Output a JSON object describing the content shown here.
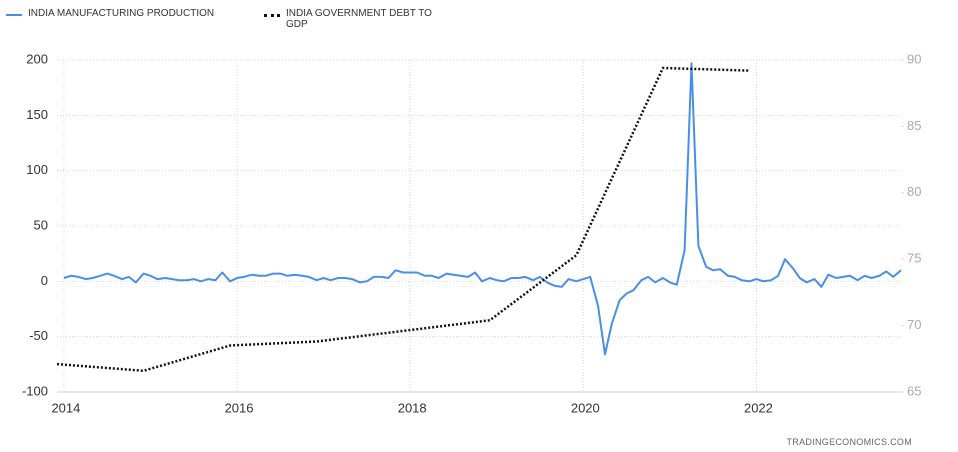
{
  "chart_data": {
    "type": "line",
    "source": "TRADINGECONOMICS.COM",
    "xlim": [
      2013.92,
      2023.67
    ],
    "xticks": [
      2014,
      2016,
      2018,
      2020,
      2022
    ],
    "ylim": [
      -100,
      200
    ],
    "yticks": [
      -100,
      -50,
      0,
      50,
      100,
      150,
      200
    ],
    "y2lim": [
      65,
      90
    ],
    "y2ticks": [
      65,
      70,
      75,
      80,
      85,
      90
    ],
    "grid": true,
    "series": [
      {
        "name": "INDIA MANUFACTURING PRODUCTION",
        "color": "#4a8fe7",
        "axis": "y",
        "x": [
          2014.0,
          2014.08,
          2014.17,
          2014.25,
          2014.33,
          2014.42,
          2014.5,
          2014.58,
          2014.67,
          2014.75,
          2014.83,
          2014.92,
          2015.0,
          2015.08,
          2015.17,
          2015.25,
          2015.33,
          2015.42,
          2015.5,
          2015.58,
          2015.67,
          2015.75,
          2015.83,
          2015.92,
          2016.0,
          2016.08,
          2016.17,
          2016.25,
          2016.33,
          2016.42,
          2016.5,
          2016.58,
          2016.67,
          2016.75,
          2016.83,
          2016.92,
          2017.0,
          2017.08,
          2017.17,
          2017.25,
          2017.33,
          2017.42,
          2017.5,
          2017.58,
          2017.67,
          2017.75,
          2017.83,
          2017.92,
          2018.0,
          2018.08,
          2018.17,
          2018.25,
          2018.33,
          2018.42,
          2018.5,
          2018.58,
          2018.67,
          2018.75,
          2018.83,
          2018.92,
          2019.0,
          2019.08,
          2019.17,
          2019.25,
          2019.33,
          2019.42,
          2019.5,
          2019.58,
          2019.67,
          2019.75,
          2019.83,
          2019.92,
          2020.0,
          2020.08,
          2020.17,
          2020.25,
          2020.33,
          2020.42,
          2020.5,
          2020.58,
          2020.67,
          2020.75,
          2020.83,
          2020.92,
          2021.0,
          2021.08,
          2021.17,
          2021.25,
          2021.33,
          2021.42,
          2021.5,
          2021.58,
          2021.67,
          2021.75,
          2021.83,
          2021.92,
          2022.0,
          2022.08,
          2022.17,
          2022.25,
          2022.33,
          2022.42,
          2022.5,
          2022.58,
          2022.67,
          2022.75,
          2022.83,
          2022.92,
          2023.0,
          2023.08,
          2023.17,
          2023.25,
          2023.33,
          2023.42,
          2023.5,
          2023.58,
          2023.67
        ],
        "values": [
          3,
          5,
          4,
          2,
          3,
          5,
          7,
          5,
          2,
          4,
          -1,
          7,
          5,
          2,
          3,
          2,
          1,
          1,
          2,
          0,
          2,
          1,
          8,
          0,
          3,
          4,
          6,
          5,
          5,
          7,
          7,
          5,
          6,
          5,
          4,
          1,
          3,
          1,
          3,
          3,
          2,
          -1,
          0,
          4,
          4,
          3,
          10,
          8,
          8,
          8,
          5,
          5,
          3,
          7,
          6,
          5,
          4,
          8,
          0,
          3,
          1,
          0,
          3,
          3,
          4,
          1,
          4,
          -1,
          -4,
          -5,
          2,
          0,
          2,
          4,
          -22,
          -66,
          -38,
          -17,
          -11,
          -8,
          1,
          4,
          -1,
          3,
          -1,
          -3,
          28,
          197,
          32,
          13,
          10,
          11,
          5,
          4,
          1,
          0,
          2,
          0,
          1,
          5,
          20,
          12,
          3,
          -1,
          2,
          -5,
          6,
          3,
          4,
          5,
          1,
          5,
          3,
          5,
          9,
          4,
          10
        ]
      },
      {
        "name": "INDIA GOVERNMENT DEBT TO GDP",
        "color": "#111111",
        "axis": "y2",
        "dash": "dotted",
        "x": [
          2013.92,
          2014.92,
          2015.92,
          2016.92,
          2017.92,
          2018.92,
          2019.92,
          2020.92,
          2021.92
        ],
        "values": [
          67.1,
          66.6,
          68.5,
          68.8,
          69.6,
          70.4,
          75.3,
          89.4,
          89.2
        ]
      }
    ]
  }
}
